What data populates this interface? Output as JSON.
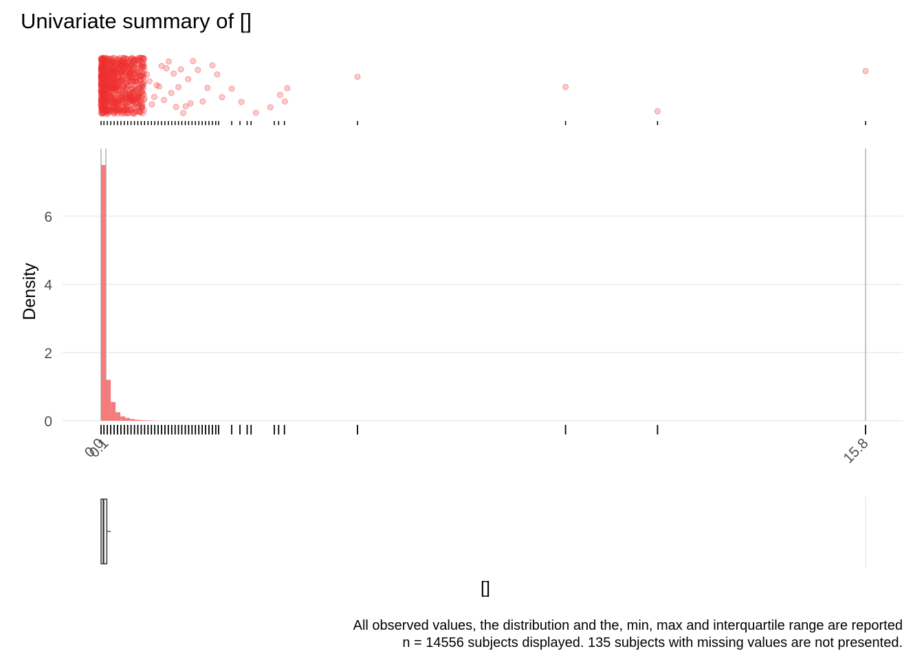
{
  "title": "Univariate summary of  []",
  "caption": {
    "line1": "All observed values, the distribution and the, min, max and interquartile range are reported",
    "line2": "n = 14556 subjects displayed. 135 subjects with missing values are not presented."
  },
  "colors": {
    "points": "#f03030",
    "bars": "#f47c7c",
    "grid": "#ebebeb",
    "ref_line": "#bdbdbd",
    "rug": "#000000"
  },
  "chart_data": [
    {
      "type": "scatter",
      "panel": "observed values (jittered)",
      "x_range": [
        0,
        15.8
      ],
      "points_x": [
        0.02,
        0.05,
        0.1,
        0.15,
        0.2,
        0.25,
        0.3,
        0.35,
        0.4,
        0.45,
        0.5,
        0.55,
        0.6,
        0.65,
        0.7,
        0.75,
        0.8,
        0.85,
        0.9,
        0.95,
        1.0,
        1.05,
        1.1,
        1.15,
        1.2,
        1.25,
        1.3,
        1.35,
        1.4,
        1.45,
        1.5,
        1.55,
        1.6,
        1.65,
        1.7,
        1.75,
        1.8,
        1.85,
        1.9,
        2.0,
        2.1,
        2.2,
        2.3,
        2.4,
        2.5,
        2.7,
        2.9,
        3.2,
        3.5,
        3.7,
        3.8,
        3.85,
        5.3,
        9.6,
        11.5,
        15.8
      ],
      "note": "dense cloud between 0 and ~0.9"
    },
    {
      "type": "bar",
      "panel": "histogram",
      "ylabel": "Density",
      "y_ticks": [
        0,
        2,
        4,
        6
      ],
      "ylim": [
        0,
        7.6
      ],
      "x_tick_labels": [
        "0.0",
        "0.1",
        "15.8"
      ],
      "xlim": [
        0,
        15.8
      ],
      "bin_width": 0.1,
      "bins_start": [
        0.0,
        0.1,
        0.2,
        0.3,
        0.4,
        0.5,
        0.6,
        0.7,
        0.8,
        0.9,
        1.0,
        1.1
      ],
      "values": [
        7.5,
        1.2,
        0.55,
        0.25,
        0.13,
        0.08,
        0.05,
        0.03,
        0.02,
        0.015,
        0.01,
        0.005
      ],
      "reference_lines_x": [
        0.0,
        0.1,
        15.8
      ]
    },
    {
      "type": "box",
      "panel": "boxplot",
      "min": 0.0,
      "q1": 0.0,
      "median": 0.05,
      "q3": 0.12,
      "max": 15.8,
      "xlabel": "[]"
    }
  ],
  "rug_x": [
    0.0,
    0.06,
    0.13,
    0.2,
    0.27,
    0.34,
    0.41,
    0.48,
    0.55,
    0.62,
    0.69,
    0.76,
    0.83,
    0.9,
    0.97,
    1.04,
    1.11,
    1.18,
    1.25,
    1.32,
    1.39,
    1.46,
    1.53,
    1.6,
    1.67,
    1.74,
    1.81,
    1.88,
    1.95,
    2.02,
    2.09,
    2.16,
    2.23,
    2.3,
    2.37,
    2.43,
    2.7,
    2.87,
    3.02,
    3.1,
    3.58,
    3.67,
    3.79,
    5.3,
    9.6,
    11.5,
    15.8
  ]
}
